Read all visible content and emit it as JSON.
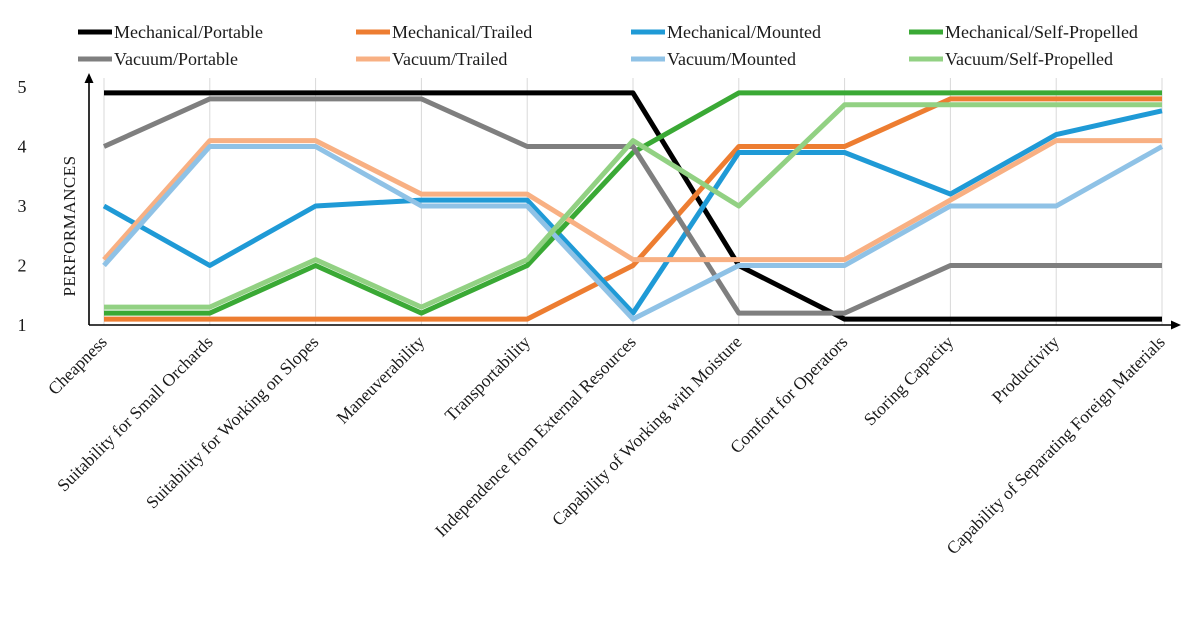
{
  "chart_data": {
    "type": "line",
    "title": "",
    "xlabel": "",
    "ylabel": "PERFORMANCES",
    "ylim": [
      1,
      5
    ],
    "yticks": [
      1,
      2,
      3,
      4,
      5
    ],
    "grid": "vertical",
    "legend_position": "top",
    "categories": [
      "Cheapness",
      "Suitability for Small Orchards",
      "Suitability for Working on Slopes",
      "Maneuverability",
      "Transportability",
      "Independence from External Resources",
      "Capability of Working with Moisture",
      "Comfort for Operators",
      "Storing Capacity",
      "Productivity",
      "Capability of Separating Foreign Materials"
    ],
    "series": [
      {
        "name": "Mechanical/Portable",
        "color": "#000000",
        "values": [
          4.9,
          4.9,
          4.9,
          4.9,
          4.9,
          4.9,
          2.0,
          1.1,
          1.1,
          1.1,
          1.1
        ]
      },
      {
        "name": "Mechanical/Trailed",
        "color": "#ed7d31",
        "values": [
          1.1,
          1.1,
          1.1,
          1.1,
          1.1,
          2.0,
          4.0,
          4.0,
          4.8,
          4.8,
          4.8
        ]
      },
      {
        "name": "Mechanical/Mounted",
        "color": "#1f9ad6",
        "values": [
          3.0,
          2.0,
          3.0,
          3.1,
          3.1,
          1.2,
          3.9,
          3.9,
          3.2,
          4.2,
          4.6
        ]
      },
      {
        "name": "Mechanical/Self-Propelled",
        "color": "#3aa935",
        "values": [
          1.2,
          1.2,
          2.0,
          1.2,
          2.0,
          3.9,
          4.9,
          4.9,
          4.9,
          4.9,
          4.9
        ]
      },
      {
        "name": "Vacuum/Portable",
        "color": "#7f7f7f",
        "values": [
          4.0,
          4.8,
          4.8,
          4.8,
          4.0,
          4.0,
          1.2,
          1.2,
          2.0,
          2.0,
          2.0
        ]
      },
      {
        "name": "Vacuum/Trailed",
        "color": "#f8b083",
        "values": [
          2.1,
          4.1,
          4.1,
          3.2,
          3.2,
          2.1,
          2.1,
          2.1,
          3.1,
          4.1,
          4.1
        ]
      },
      {
        "name": "Vacuum/Mounted",
        "color": "#8fc2e6",
        "values": [
          2.0,
          4.0,
          4.0,
          3.0,
          3.0,
          1.1,
          2.0,
          2.0,
          3.0,
          3.0,
          4.0
        ]
      },
      {
        "name": "Vacuum/Self-Propelled",
        "color": "#92d183",
        "values": [
          1.3,
          1.3,
          2.1,
          1.3,
          2.1,
          4.1,
          3.0,
          4.7,
          4.7,
          4.7,
          4.7
        ]
      }
    ]
  }
}
